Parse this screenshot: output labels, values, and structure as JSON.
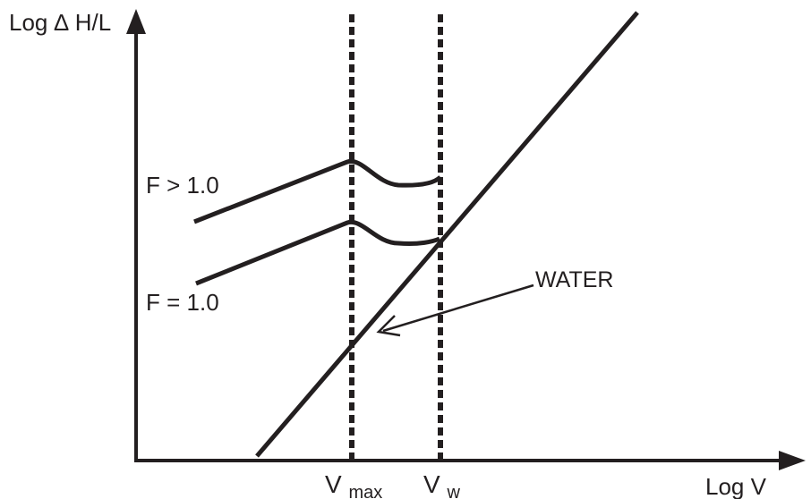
{
  "diagram": {
    "y_axis_label": "Log ∆ H/L",
    "x_axis_label": "Log V",
    "curve_labels": {
      "upper": "F > 1.0",
      "lower": "F = 1.0"
    },
    "water_label": "WATER",
    "marker_labels": {
      "vmax": {
        "main": "V",
        "sub": "max"
      },
      "vw": {
        "main": "V",
        "sub": "w"
      }
    },
    "colors": {
      "ink": "#231f20",
      "background": "#ffffff"
    }
  }
}
